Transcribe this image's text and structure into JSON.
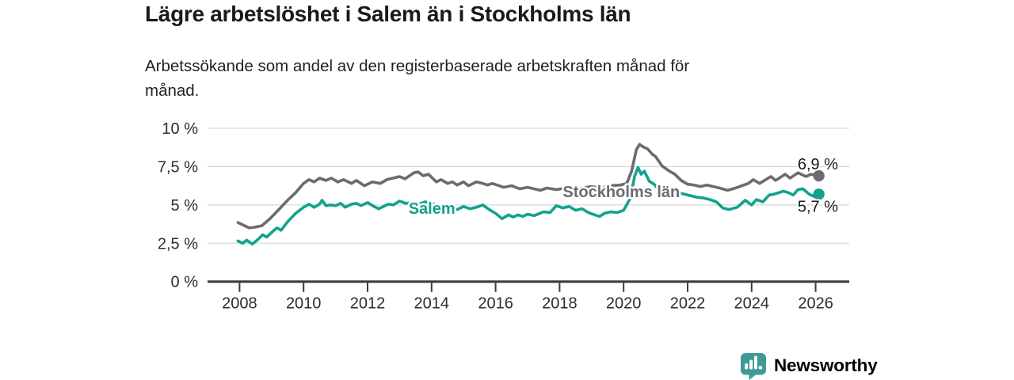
{
  "header": {
    "title": "Lägre arbetslöshet i Salem än i Stockholms län",
    "subtitle_lines": [
      "Arbetssökande som andel av den registerbaserade arbetskraften månad för",
      "månad."
    ]
  },
  "footer": {
    "brand": "Newsworthy",
    "logo_icon": "bar-chart-speech-bubble"
  },
  "colors": {
    "stockholm_line": "#6d6a70",
    "salem_line": "#11a28c",
    "grid": "#d9d9d9",
    "axis": "#3a3a3a",
    "axis_text": "#2d2d2d",
    "title_text": "#1a1a1a",
    "brand_teal": "#3e9a94"
  },
  "chart_data": {
    "type": "line",
    "title": "Lägre arbetslöshet i Salem än i Stockholms län",
    "subtitle": "Arbetssökande som andel av den registerbaserade arbetskraften månad för månad.",
    "unit": "%",
    "grid": "horizontal",
    "legend": "inline-labels",
    "x_axis": {
      "ticks": [
        2008,
        2010,
        2012,
        2014,
        2016,
        2018,
        2020,
        2022,
        2024,
        2026
      ],
      "range_years": [
        2007.0,
        2027.05
      ]
    },
    "y_axis": {
      "ticks": [
        0,
        2.5,
        5,
        7.5,
        10
      ],
      "tick_labels": [
        "0 %",
        "2,5 %",
        "5 %",
        "7,5 %",
        "10 %"
      ],
      "range": [
        0,
        10
      ]
    },
    "series": [
      {
        "name": "Stockholms län",
        "color": "#6d6a70",
        "end_value": 6.9,
        "end_label": "6,9 %",
        "end_label_dy": -8,
        "label_anchor": {
          "year": 2018.1,
          "value": 5.88,
          "anchor": "start"
        },
        "points": [
          [
            2007.95,
            3.85
          ],
          [
            2008.1,
            3.7
          ],
          [
            2008.3,
            3.5
          ],
          [
            2008.5,
            3.55
          ],
          [
            2008.7,
            3.65
          ],
          [
            2008.95,
            4.1
          ],
          [
            2009.25,
            4.75
          ],
          [
            2009.5,
            5.3
          ],
          [
            2009.75,
            5.8
          ],
          [
            2010.0,
            6.4
          ],
          [
            2010.17,
            6.65
          ],
          [
            2010.33,
            6.5
          ],
          [
            2010.5,
            6.75
          ],
          [
            2010.7,
            6.6
          ],
          [
            2010.87,
            6.75
          ],
          [
            2011.07,
            6.5
          ],
          [
            2011.25,
            6.65
          ],
          [
            2011.5,
            6.4
          ],
          [
            2011.65,
            6.6
          ],
          [
            2011.9,
            6.25
          ],
          [
            2012.15,
            6.5
          ],
          [
            2012.4,
            6.4
          ],
          [
            2012.6,
            6.65
          ],
          [
            2012.8,
            6.75
          ],
          [
            2013.0,
            6.85
          ],
          [
            2013.17,
            6.7
          ],
          [
            2013.45,
            7.1
          ],
          [
            2013.58,
            7.15
          ],
          [
            2013.74,
            6.9
          ],
          [
            2013.9,
            7.0
          ],
          [
            2014.15,
            6.5
          ],
          [
            2014.3,
            6.65
          ],
          [
            2014.5,
            6.4
          ],
          [
            2014.65,
            6.5
          ],
          [
            2014.8,
            6.3
          ],
          [
            2015.0,
            6.5
          ],
          [
            2015.15,
            6.25
          ],
          [
            2015.4,
            6.5
          ],
          [
            2015.6,
            6.4
          ],
          [
            2015.75,
            6.3
          ],
          [
            2015.9,
            6.4
          ],
          [
            2016.25,
            6.15
          ],
          [
            2016.5,
            6.25
          ],
          [
            2016.75,
            6.05
          ],
          [
            2017.0,
            6.15
          ],
          [
            2017.4,
            5.95
          ],
          [
            2017.6,
            6.1
          ],
          [
            2017.9,
            6.0
          ],
          [
            2018.2,
            6.1
          ],
          [
            2018.4,
            6.05
          ],
          [
            2018.7,
            6.1
          ],
          [
            2019.0,
            6.2
          ],
          [
            2019.3,
            6.1
          ],
          [
            2019.6,
            6.25
          ],
          [
            2019.9,
            6.3
          ],
          [
            2020.1,
            6.4
          ],
          [
            2020.25,
            7.2
          ],
          [
            2020.4,
            8.6
          ],
          [
            2020.5,
            8.95
          ],
          [
            2020.6,
            8.8
          ],
          [
            2020.75,
            8.65
          ],
          [
            2020.9,
            8.3
          ],
          [
            2021.0,
            8.15
          ],
          [
            2021.2,
            7.55
          ],
          [
            2021.4,
            7.25
          ],
          [
            2021.6,
            7.0
          ],
          [
            2021.8,
            6.6
          ],
          [
            2022.0,
            6.35
          ],
          [
            2022.2,
            6.3
          ],
          [
            2022.4,
            6.2
          ],
          [
            2022.6,
            6.3
          ],
          [
            2022.8,
            6.2
          ],
          [
            2023.0,
            6.1
          ],
          [
            2023.25,
            5.95
          ],
          [
            2023.5,
            6.1
          ],
          [
            2023.7,
            6.25
          ],
          [
            2023.9,
            6.4
          ],
          [
            2024.05,
            6.65
          ],
          [
            2024.25,
            6.4
          ],
          [
            2024.6,
            6.85
          ],
          [
            2024.75,
            6.6
          ],
          [
            2025.05,
            7.0
          ],
          [
            2025.2,
            6.75
          ],
          [
            2025.45,
            7.1
          ],
          [
            2025.7,
            6.85
          ],
          [
            2025.85,
            7.0
          ],
          [
            2026.1,
            6.9
          ]
        ]
      },
      {
        "name": "Salem",
        "color": "#11a28c",
        "end_value": 5.7,
        "end_label": "5,7 %",
        "end_label_dy": 22,
        "label_anchor": {
          "year": 2013.28,
          "value": 4.78,
          "anchor": "start"
        },
        "points": [
          [
            2007.95,
            2.65
          ],
          [
            2008.1,
            2.5
          ],
          [
            2008.22,
            2.7
          ],
          [
            2008.4,
            2.45
          ],
          [
            2008.55,
            2.7
          ],
          [
            2008.72,
            3.05
          ],
          [
            2008.85,
            2.9
          ],
          [
            2009.05,
            3.3
          ],
          [
            2009.17,
            3.5
          ],
          [
            2009.3,
            3.35
          ],
          [
            2009.5,
            3.9
          ],
          [
            2009.75,
            4.45
          ],
          [
            2010.0,
            4.85
          ],
          [
            2010.17,
            5.05
          ],
          [
            2010.33,
            4.85
          ],
          [
            2010.5,
            5.05
          ],
          [
            2010.58,
            5.3
          ],
          [
            2010.7,
            4.95
          ],
          [
            2010.85,
            5.0
          ],
          [
            2011.0,
            4.95
          ],
          [
            2011.16,
            5.1
          ],
          [
            2011.3,
            4.85
          ],
          [
            2011.5,
            5.05
          ],
          [
            2011.65,
            5.1
          ],
          [
            2011.8,
            4.95
          ],
          [
            2012.0,
            5.15
          ],
          [
            2012.2,
            4.9
          ],
          [
            2012.35,
            4.75
          ],
          [
            2012.5,
            4.9
          ],
          [
            2012.65,
            5.05
          ],
          [
            2012.8,
            5.0
          ],
          [
            2013.0,
            5.25
          ],
          [
            2013.2,
            5.1
          ],
          [
            2013.4,
            5.15
          ],
          [
            2013.6,
            5.05
          ],
          [
            2013.8,
            5.2
          ],
          [
            2014.0,
            5.1
          ],
          [
            2014.2,
            4.95
          ],
          [
            2014.4,
            4.6
          ],
          [
            2014.6,
            4.75
          ],
          [
            2014.8,
            4.7
          ],
          [
            2015.0,
            4.9
          ],
          [
            2015.2,
            4.75
          ],
          [
            2015.4,
            4.85
          ],
          [
            2015.6,
            5.0
          ],
          [
            2015.8,
            4.7
          ],
          [
            2016.0,
            4.45
          ],
          [
            2016.2,
            4.1
          ],
          [
            2016.4,
            4.35
          ],
          [
            2016.55,
            4.2
          ],
          [
            2016.7,
            4.35
          ],
          [
            2016.85,
            4.25
          ],
          [
            2017.0,
            4.4
          ],
          [
            2017.2,
            4.3
          ],
          [
            2017.5,
            4.55
          ],
          [
            2017.7,
            4.5
          ],
          [
            2017.9,
            4.95
          ],
          [
            2018.1,
            4.8
          ],
          [
            2018.3,
            4.9
          ],
          [
            2018.5,
            4.65
          ],
          [
            2018.7,
            4.75
          ],
          [
            2018.9,
            4.5
          ],
          [
            2019.1,
            4.35
          ],
          [
            2019.25,
            4.25
          ],
          [
            2019.4,
            4.45
          ],
          [
            2019.6,
            4.55
          ],
          [
            2019.8,
            4.5
          ],
          [
            2020.0,
            4.65
          ],
          [
            2020.2,
            5.4
          ],
          [
            2020.35,
            6.9
          ],
          [
            2020.45,
            7.45
          ],
          [
            2020.55,
            7.0
          ],
          [
            2020.65,
            7.2
          ],
          [
            2020.8,
            6.55
          ],
          [
            2020.95,
            6.35
          ],
          [
            2021.1,
            6.0
          ],
          [
            2021.3,
            5.8
          ],
          [
            2021.5,
            5.7
          ],
          [
            2021.7,
            5.8
          ],
          [
            2021.9,
            5.7
          ],
          [
            2022.1,
            5.6
          ],
          [
            2022.3,
            5.5
          ],
          [
            2022.5,
            5.45
          ],
          [
            2022.7,
            5.35
          ],
          [
            2022.9,
            5.2
          ],
          [
            2023.1,
            4.8
          ],
          [
            2023.3,
            4.7
          ],
          [
            2023.55,
            4.85
          ],
          [
            2023.8,
            5.3
          ],
          [
            2024.0,
            5.0
          ],
          [
            2024.15,
            5.35
          ],
          [
            2024.35,
            5.2
          ],
          [
            2024.55,
            5.65
          ],
          [
            2024.7,
            5.7
          ],
          [
            2025.0,
            5.9
          ],
          [
            2025.15,
            5.8
          ],
          [
            2025.3,
            5.65
          ],
          [
            2025.45,
            6.0
          ],
          [
            2025.6,
            6.05
          ],
          [
            2025.8,
            5.7
          ],
          [
            2025.95,
            5.55
          ],
          [
            2026.1,
            5.7
          ]
        ]
      }
    ]
  }
}
